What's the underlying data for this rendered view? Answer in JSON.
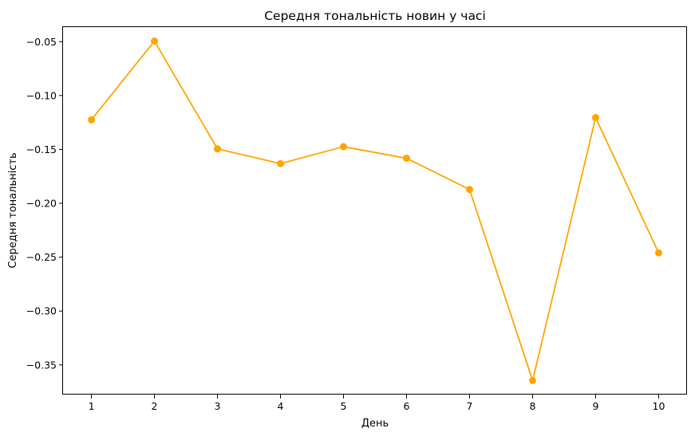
{
  "chart_data": {
    "type": "line",
    "title": "Середня тональність новин у часі",
    "xlabel": "День",
    "ylabel": "Середня тональність",
    "x": [
      1,
      2,
      3,
      4,
      5,
      6,
      7,
      8,
      9,
      10
    ],
    "x_ticks": [
      "1",
      "2",
      "3",
      "4",
      "5",
      "6",
      "7",
      "8",
      "9",
      "10"
    ],
    "y_ticks": [
      "−0.35",
      "−0.30",
      "−0.25",
      "−0.20",
      "−0.15",
      "−0.10",
      "−0.05"
    ],
    "y_tick_values": [
      -0.35,
      -0.3,
      -0.25,
      -0.2,
      -0.15,
      -0.1,
      -0.05
    ],
    "series": [
      {
        "values": [
          -0.1225,
          -0.0495,
          -0.1495,
          -0.1632,
          -0.1475,
          -0.1582,
          -0.1872,
          -0.3645,
          -0.1205,
          -0.246
        ],
        "color": "#ffa500",
        "marker": "circle"
      }
    ],
    "xlim": [
      0.55,
      10.45
    ],
    "ylim": [
      -0.3775,
      -0.0365
    ],
    "grid": false,
    "legend": "none"
  }
}
